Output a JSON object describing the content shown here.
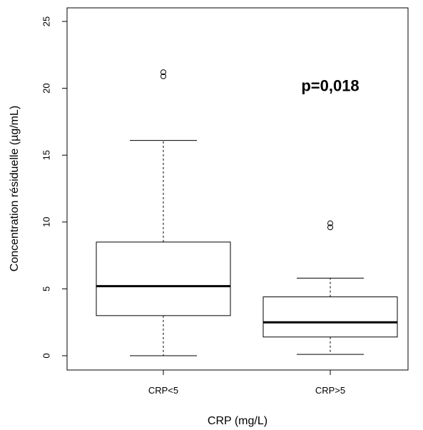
{
  "chart_data": {
    "type": "box",
    "xlabel": "CRP (mg/L)",
    "ylabel": "Concentration résiduelle (µg/mL)",
    "ylim": [
      -1,
      26
    ],
    "yticks": [
      0,
      5,
      10,
      15,
      20,
      25
    ],
    "categories": [
      "CRP<5",
      "CRP>5"
    ],
    "boxes": [
      {
        "category": "CRP<5",
        "whisker_low": 0,
        "q1": 3.0,
        "median": 5.2,
        "q3": 8.5,
        "whisker_high": 16.1,
        "outliers": [
          20.9,
          21.2
        ]
      },
      {
        "category": "CRP>5",
        "whisker_low": 0.1,
        "q1": 1.4,
        "median": 2.5,
        "q3": 4.4,
        "whisker_high": 5.8,
        "outliers": [
          9.6,
          9.9
        ]
      }
    ],
    "annotations": [
      {
        "text": "p=0,018",
        "x": "CRP>5",
        "y": 19.8
      }
    ],
    "grid": false,
    "legend": "none"
  }
}
